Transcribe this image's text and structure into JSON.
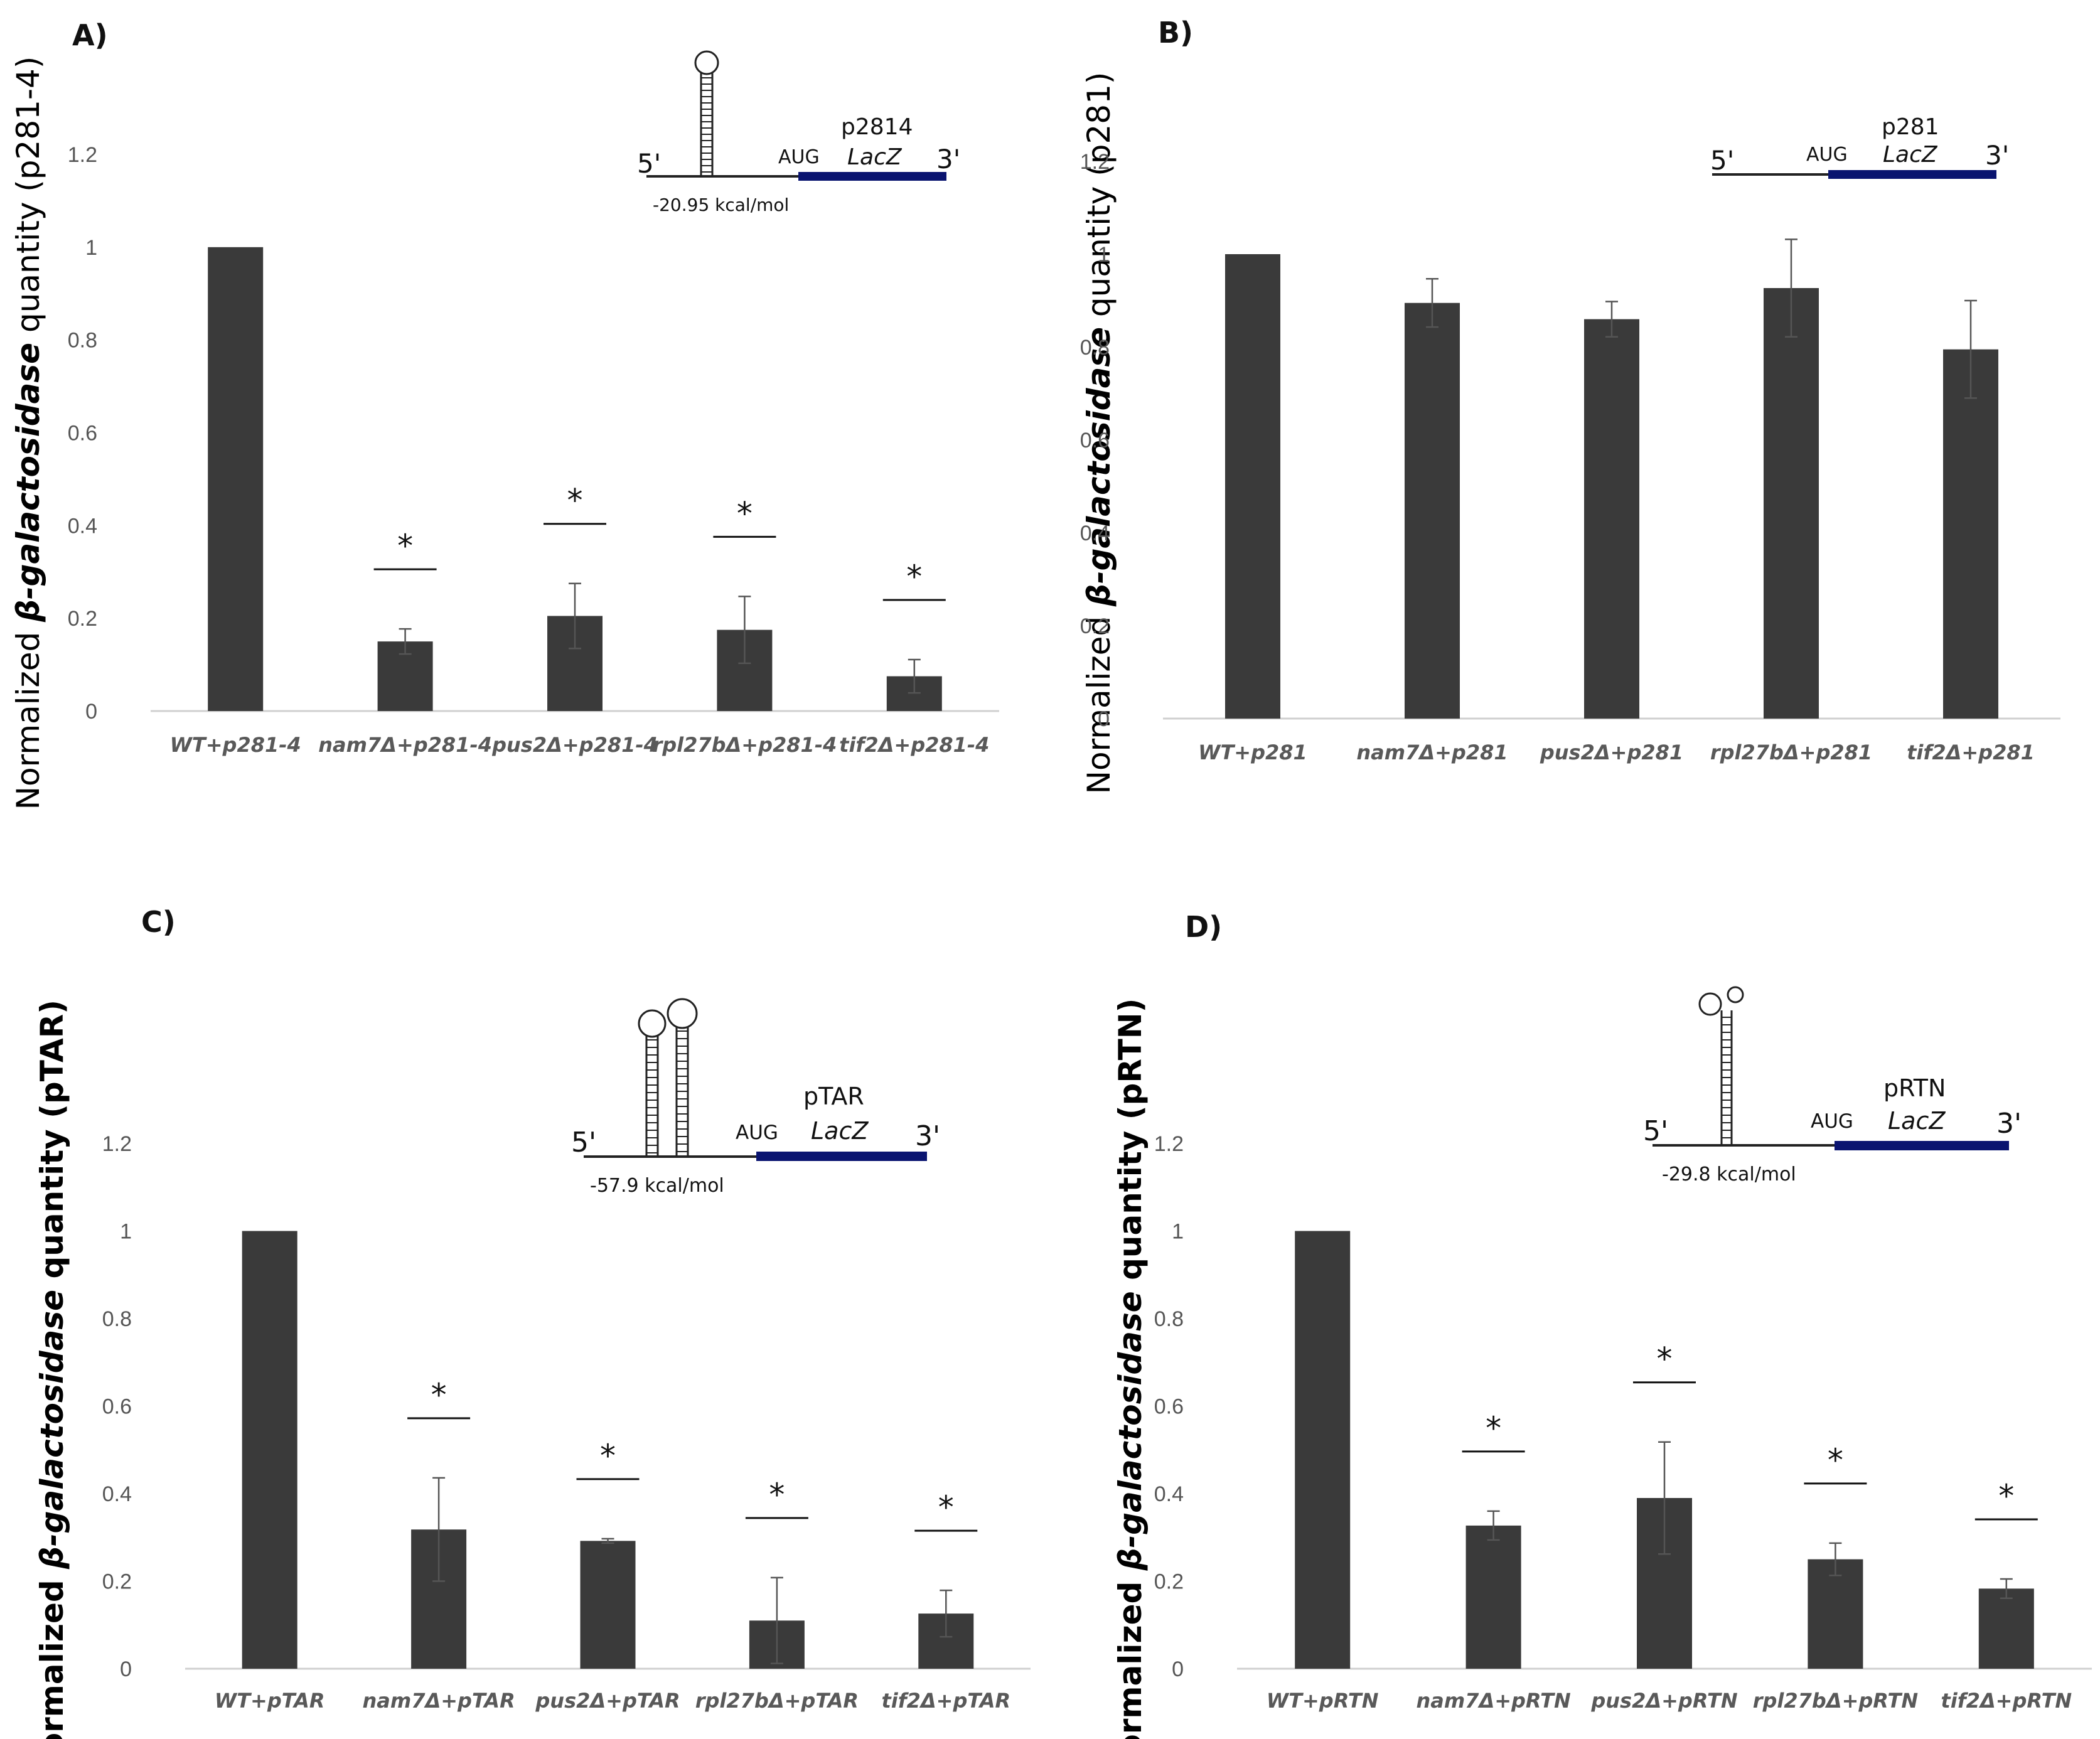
{
  "chart_data": [
    {
      "type": "bar",
      "panel_label": "A)",
      "ylabel_prefix": "Normalized ",
      "ylabel_italic": "β-galactosidase",
      "ylabel_suffix": " quantity (p281-4)",
      "ylim": [
        0,
        1.2
      ],
      "yticks": [
        "0",
        "0.2",
        "0.4",
        "0.6",
        "0.8",
        "1",
        "1.2"
      ],
      "categories": [
        "WT+p281-4",
        "nam7Δ+p281-4",
        "pus2Δ+p281-4",
        "rpl27bΔ+p281-4",
        "tif2Δ+p281-4"
      ],
      "values": [
        1.0,
        0.15,
        0.205,
        0.175,
        0.075
      ],
      "errors": [
        0,
        0.027,
        0.07,
        0.072,
        0.036
      ],
      "significance": [
        false,
        true,
        true,
        true,
        true
      ],
      "star_label": "*",
      "bar_color": "#3a3a3a",
      "construct": {
        "name": "p2814",
        "five": "5'",
        "aug": "AUG",
        "gene": "LacZ",
        "three": "3'",
        "energy": "-20.95 kcal/mol"
      }
    },
    {
      "type": "bar",
      "panel_label": "B)",
      "ylabel_prefix": "Normalized ",
      "ylabel_italic": "β-galactosidase",
      "ylabel_suffix": " quantity (p281)",
      "ylim": [
        0,
        1.2
      ],
      "yticks": [
        "0",
        "0.2",
        "0.4",
        "0.6",
        "0.8",
        "1",
        "1.2"
      ],
      "categories": [
        "WT+p281",
        "nam7Δ+p281",
        "pus2Δ+p281",
        "rpl27bΔ+p281",
        "tif2Δ+p281"
      ],
      "values": [
        1.0,
        0.895,
        0.86,
        0.927,
        0.795
      ],
      "errors": [
        0,
        0.052,
        0.038,
        0.105,
        0.105
      ],
      "significance": [
        false,
        false,
        false,
        false,
        false
      ],
      "star_label": "*",
      "bar_color": "#3a3a3a",
      "construct": {
        "name": "p281",
        "five": "5'",
        "aug": "AUG",
        "gene": "LacZ",
        "three": "3'"
      }
    },
    {
      "type": "bar",
      "panel_label": "C)",
      "ylabel_prefix": "Normalized ",
      "ylabel_italic": "β-galactosidase",
      "ylabel_suffix": " quantity (pTAR)",
      "ylim": [
        0,
        1.2
      ],
      "yticks": [
        "0",
        "0.2",
        "0.4",
        "0.6",
        "0.8",
        "1",
        "1.2"
      ],
      "categories": [
        "WT+pTAR",
        "nam7Δ+pTAR",
        "pus2Δ+pTAR",
        "rpl27bΔ+pTAR",
        "tif2Δ+pTAR"
      ],
      "values": [
        1.0,
        0.318,
        0.292,
        0.11,
        0.126
      ],
      "errors": [
        0,
        0.118,
        0.005,
        0.098,
        0.053
      ],
      "significance": [
        false,
        true,
        true,
        true,
        true
      ],
      "star_label": "*",
      "bar_color": "#3a3a3a",
      "construct": {
        "name": "pTAR",
        "five": "5'",
        "aug": "AUG",
        "gene": "LacZ",
        "three": "3'",
        "energy": "-57.9 kcal/mol"
      }
    },
    {
      "type": "bar",
      "panel_label": "D)",
      "ylabel_prefix": "Normalized ",
      "ylabel_italic": "β-galactosidase",
      "ylabel_suffix": " quantity (pRTN)",
      "ylim": [
        0,
        1.2
      ],
      "yticks": [
        "0",
        "0.2",
        "0.4",
        "0.6",
        "0.8",
        "1",
        "1.2"
      ],
      "categories": [
        "WT+pRTN",
        "nam7Δ+pRTN",
        "pus2Δ+pRTN",
        "rpl27bΔ+pRTN",
        "tif2Δ+pRTN"
      ],
      "values": [
        1.0,
        0.327,
        0.39,
        0.25,
        0.183
      ],
      "errors": [
        0,
        0.033,
        0.128,
        0.037,
        0.022
      ],
      "significance": [
        false,
        true,
        true,
        true,
        true
      ],
      "star_label": "*",
      "bar_color": "#3a3a3a",
      "construct": {
        "name": "pRTN",
        "five": "5'",
        "aug": "AUG",
        "gene": "LacZ",
        "three": "3'",
        "energy": "-29.8 kcal/mol"
      }
    }
  ]
}
